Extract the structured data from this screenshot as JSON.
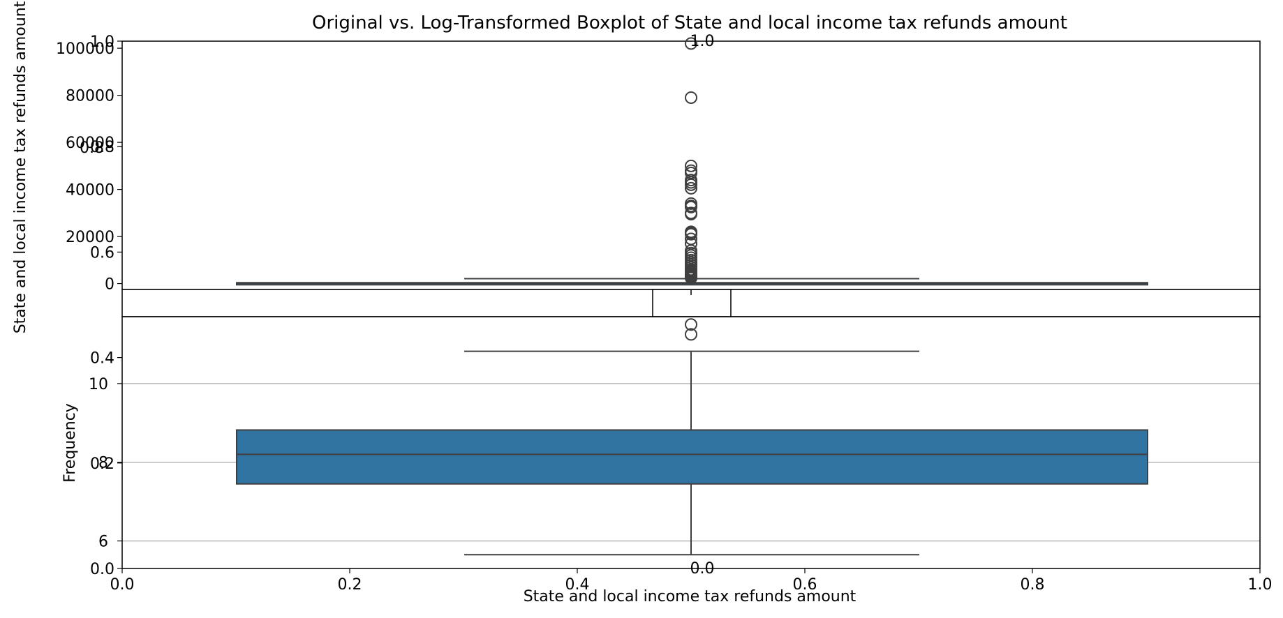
{
  "chart_data": {
    "type": "box",
    "title": "Original vs. Log-Transformed Boxplot of State and local income tax refunds amount",
    "xlabel": "State and local income tax refunds amount",
    "outer_axes": {
      "x_ticks": [
        "0.0",
        "0.2",
        "0.4",
        "0.6",
        "0.8",
        "1.0"
      ],
      "y_ticks": [
        "0.0",
        "0.2",
        "0.4",
        "0.6",
        "0.8",
        "1.0"
      ],
      "xlim": [
        0,
        1
      ],
      "ylim": [
        0,
        1
      ]
    },
    "subplots": [
      {
        "id": "original",
        "ylabel": "State and local income tax refunds amount",
        "ylim": [
          -2500,
          103000
        ],
        "y_ticks": [
          0,
          20000,
          40000,
          60000,
          80000,
          100000
        ],
        "grid": false,
        "box": {
          "q1": 0,
          "median": 120,
          "q3": 380,
          "whisker_low": 0,
          "whisker_high": 2100
        },
        "outliers": [
          102000,
          79000,
          50000,
          48000,
          47000,
          44000,
          43000,
          42000,
          40500,
          34000,
          33000,
          32500,
          30000,
          29500,
          22000,
          21500,
          21000,
          19000,
          17000,
          14000,
          13000,
          12000,
          11000,
          10000,
          9000,
          8000,
          7000,
          6000,
          5500,
          5000,
          4500,
          4000,
          3500,
          3000,
          2600,
          2300
        ],
        "inset": {
          "x_ticks": [
            "0.0",
            "0.2",
            "0.4",
            "0.6",
            "0.8",
            "1.0"
          ],
          "y_ticks": [
            "0.0",
            "1.0"
          ],
          "xlim": [
            0,
            1
          ],
          "ylim": [
            0,
            1
          ]
        }
      },
      {
        "id": "log",
        "ylabel": "Frequency",
        "ylim": [
          5.3,
          11.7
        ],
        "y_ticks": [
          6,
          8,
          10
        ],
        "grid": true,
        "box": {
          "q1": 7.45,
          "median": 8.2,
          "q3": 8.82,
          "whisker_low": 5.65,
          "whisker_high": 10.82
        },
        "outliers": [
          11.25,
          11.5
        ]
      }
    ],
    "colors": {
      "box_fill": "#3274a1",
      "box_edge": "#3f3f3f",
      "grid": "#b0b0b0"
    }
  }
}
